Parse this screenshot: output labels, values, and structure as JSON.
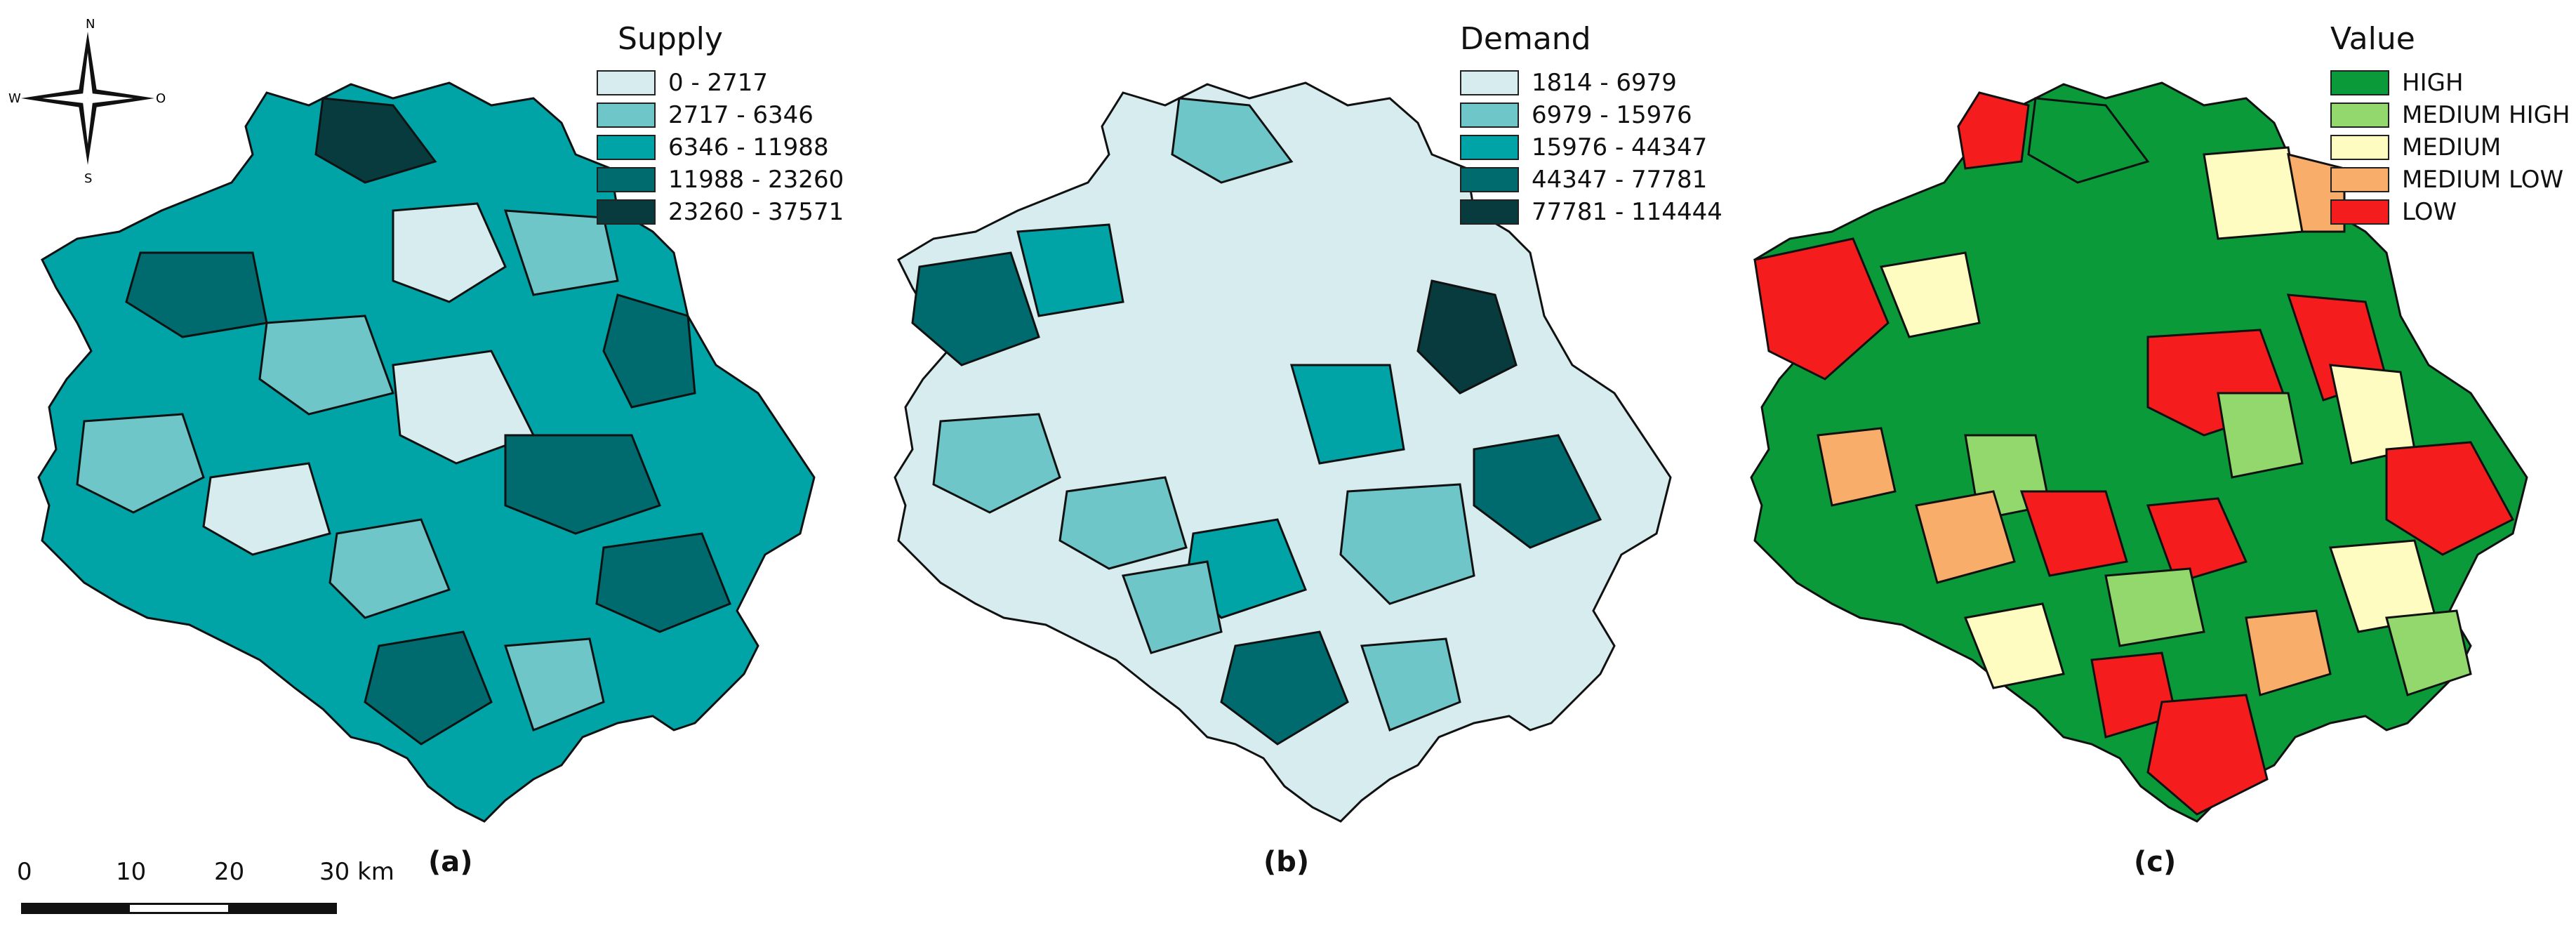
{
  "compass": {
    "n": "N",
    "s": "S",
    "w": "W",
    "e": "O"
  },
  "scale_bar": {
    "ticks": [
      "0",
      "10",
      "20",
      "30 km"
    ]
  },
  "panels": [
    {
      "label": "(a)",
      "legend_title": "Supply",
      "classes": [
        {
          "label": "0 - 2717",
          "color": "#d6ecee"
        },
        {
          "label": "2717 - 6346",
          "color": "#6ec6c9"
        },
        {
          "label": "6346 - 11988",
          "color": "#00a3a6"
        },
        {
          "label": "11988 - 23260",
          "color": "#006b6e"
        },
        {
          "label": "23260 - 37571",
          "color": "#073b3d"
        }
      ]
    },
    {
      "label": "(b)",
      "legend_title": "Demand",
      "classes": [
        {
          "label": "1814 - 6979",
          "color": "#d6ecee"
        },
        {
          "label": "6979 - 15976",
          "color": "#6ec6c9"
        },
        {
          "label": "15976 - 44347",
          "color": "#00a3a6"
        },
        {
          "label": "44347 - 77781",
          "color": "#006b6e"
        },
        {
          "label": "77781 - 114444",
          "color": "#073b3d"
        }
      ]
    },
    {
      "label": "(c)",
      "legend_title": "Value",
      "classes": [
        {
          "label": "HIGH",
          "color": "#0a9a3a"
        },
        {
          "label": "MEDIUM HIGH",
          "color": "#92d86c"
        },
        {
          "label": "MEDIUM",
          "color": "#fffcc2"
        },
        {
          "label": "MEDIUM LOW",
          "color": "#f8ad6a"
        },
        {
          "label": "LOW",
          "color": "#f41c1c"
        }
      ]
    }
  ]
}
